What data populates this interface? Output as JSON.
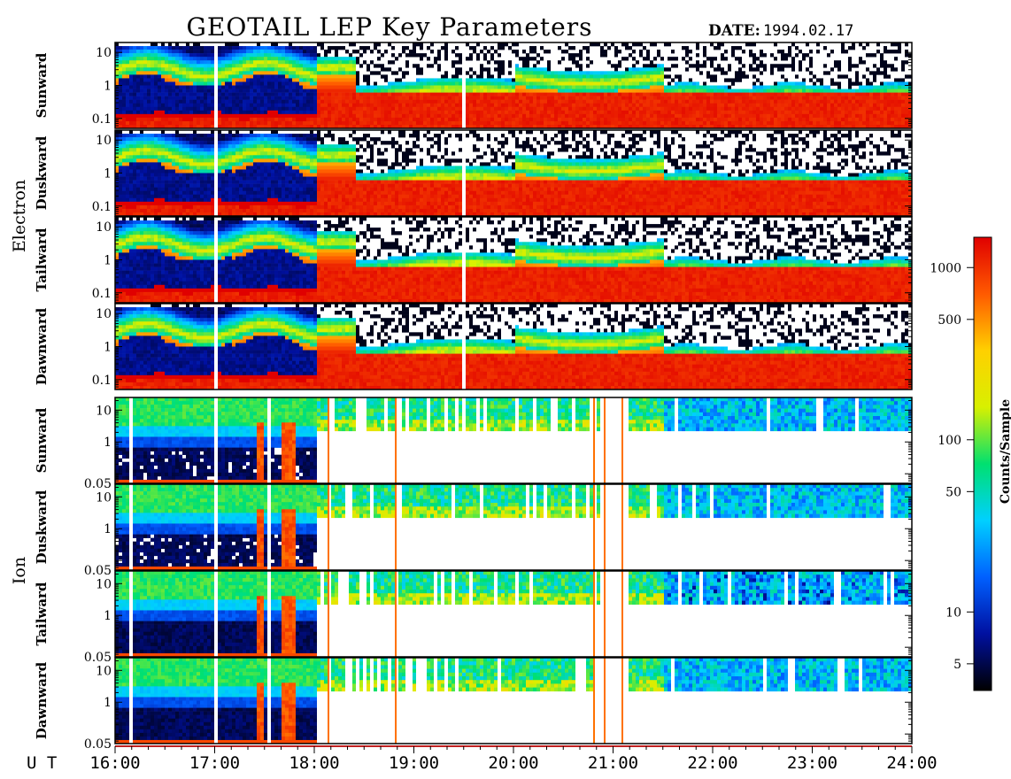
{
  "chart_data": {
    "type": "heatmap",
    "title": "GEOTAIL LEP Key Parameters",
    "date_label": "DATE:",
    "date_value": "1994.02.17",
    "x_axis_label": "U T",
    "x_ticks": [
      "16:00",
      "17:00",
      "18:00",
      "19:00",
      "20:00",
      "21:00",
      "22:00",
      "23:00",
      "24:00"
    ],
    "x_range_hours": [
      16,
      24
    ],
    "groups": [
      {
        "name": "Electron",
        "y_ticks": [
          "10",
          "1",
          "0.1"
        ],
        "y_tick_values": [
          10,
          1,
          0.1
        ],
        "y_range": [
          0.05,
          20
        ],
        "y_scale": "log",
        "panels": [
          "Sunward",
          "Duskward",
          "Tailward",
          "Dawnward"
        ]
      },
      {
        "name": "Ion",
        "y_ticks": [
          "10",
          "1",
          "0.05"
        ],
        "y_tick_values": [
          10,
          1,
          0.05
        ],
        "y_range": [
          0.05,
          25
        ],
        "y_scale": "log",
        "panels": [
          "Sunward",
          "Duskward",
          "Tailward",
          "Dawnward"
        ]
      }
    ],
    "colorbar": {
      "label": "Counts/Sample",
      "scale": "log",
      "range": [
        3.5,
        1500
      ],
      "ticks": [
        "1000",
        "500",
        "100",
        "50",
        "10",
        "5"
      ],
      "tick_values": [
        1000,
        500,
        100,
        50,
        10,
        5
      ],
      "colors": [
        "#000000",
        "#0010a0",
        "#0060ff",
        "#00d0ff",
        "#00e070",
        "#d8f000",
        "#ffd000",
        "#ff5a00",
        "#e00000"
      ]
    },
    "grid": false,
    "legend": "right"
  }
}
